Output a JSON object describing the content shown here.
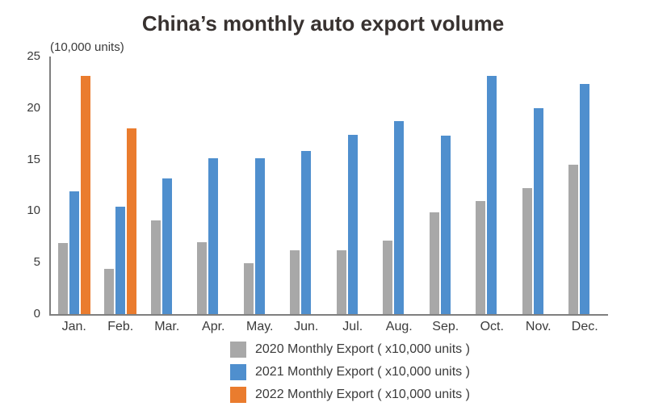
{
  "chart_data": {
    "type": "bar",
    "title": "China’s monthly auto export volume",
    "unit_label": "(10,000 units)",
    "categories": [
      "Jan.",
      "Feb.",
      "Mar.",
      "Apr.",
      "May.",
      "Jun.",
      "Jul.",
      "Aug.",
      "Sep.",
      "Oct.",
      "Nov.",
      "Dec."
    ],
    "series": [
      {
        "year": "2020",
        "name": "2020 Monthly Export ( x10,000 units )",
        "color": "#a8a8a8",
        "values": [
          6.9,
          4.4,
          9.1,
          7.0,
          4.9,
          6.2,
          6.2,
          7.1,
          9.9,
          11.0,
          12.2,
          14.5
        ]
      },
      {
        "year": "2021",
        "name": "2021 Monthly Export ( x10,000 units )",
        "color": "#4f8fce",
        "values": [
          11.9,
          10.4,
          13.2,
          15.1,
          15.1,
          15.8,
          17.4,
          18.7,
          17.3,
          23.1,
          20.0,
          22.3
        ]
      },
      {
        "year": "2022",
        "name": "2022 Monthly Export ( x10,000 units )",
        "color": "#ea7c2e",
        "values": [
          23.1,
          18.0,
          null,
          null,
          null,
          null,
          null,
          null,
          null,
          null,
          null,
          null
        ]
      }
    ],
    "y_axis": {
      "min": 0,
      "max": 25,
      "ticks": [
        0,
        5,
        10,
        15,
        20,
        25
      ]
    },
    "grid": false,
    "legend_position": "bottom",
    "colors": {
      "axis": "#7f7f7f",
      "text": "#3a3a3a",
      "background": "#ffffff"
    }
  }
}
